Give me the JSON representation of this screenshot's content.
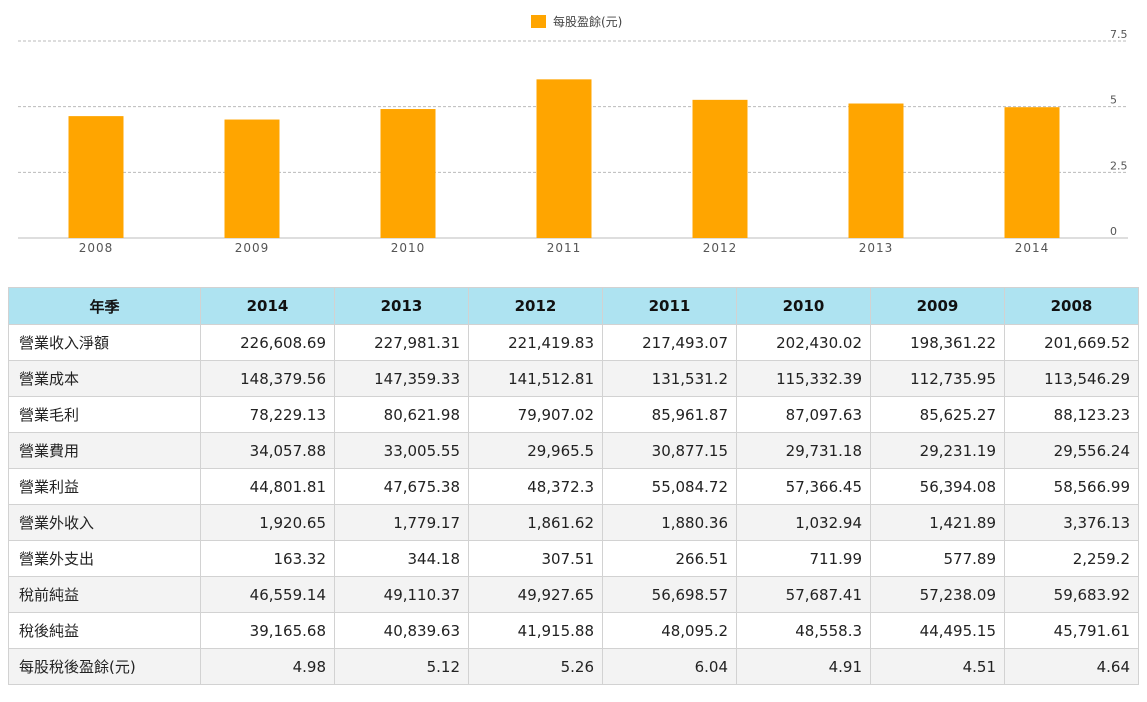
{
  "chart_data": {
    "type": "bar",
    "legend": "每股盈餘(元)",
    "legend_position": "top-center",
    "categories": [
      "2008",
      "2009",
      "2010",
      "2011",
      "2012",
      "2013",
      "2014"
    ],
    "series": [
      {
        "name": "每股盈餘(元)",
        "values": [
          4.64,
          4.51,
          4.91,
          6.04,
          5.26,
          5.12,
          4.98
        ],
        "color": "#ffa500"
      }
    ],
    "ylim": [
      0,
      7.5
    ],
    "y_ticks": [
      "0",
      "2.5",
      "5",
      "7.5"
    ],
    "y_axis_side": "right",
    "grid": true
  },
  "table": {
    "headers": [
      "年季",
      "2014",
      "2013",
      "2012",
      "2011",
      "2010",
      "2009",
      "2008"
    ],
    "rows": [
      {
        "label": "營業收入淨額",
        "values": [
          "226,608.69",
          "227,981.31",
          "221,419.83",
          "217,493.07",
          "202,430.02",
          "198,361.22",
          "201,669.52"
        ]
      },
      {
        "label": "營業成本",
        "values": [
          "148,379.56",
          "147,359.33",
          "141,512.81",
          "131,531.2",
          "115,332.39",
          "112,735.95",
          "113,546.29"
        ]
      },
      {
        "label": "營業毛利",
        "values": [
          "78,229.13",
          "80,621.98",
          "79,907.02",
          "85,961.87",
          "87,097.63",
          "85,625.27",
          "88,123.23"
        ]
      },
      {
        "label": "營業費用",
        "values": [
          "34,057.88",
          "33,005.55",
          "29,965.5",
          "30,877.15",
          "29,731.18",
          "29,231.19",
          "29,556.24"
        ]
      },
      {
        "label": "營業利益",
        "values": [
          "44,801.81",
          "47,675.38",
          "48,372.3",
          "55,084.72",
          "57,366.45",
          "56,394.08",
          "58,566.99"
        ]
      },
      {
        "label": "營業外收入",
        "values": [
          "1,920.65",
          "1,779.17",
          "1,861.62",
          "1,880.36",
          "1,032.94",
          "1,421.89",
          "3,376.13"
        ]
      },
      {
        "label": "營業外支出",
        "values": [
          "163.32",
          "344.18",
          "307.51",
          "266.51",
          "711.99",
          "577.89",
          "2,259.2"
        ]
      },
      {
        "label": "稅前純益",
        "values": [
          "46,559.14",
          "49,110.37",
          "49,927.65",
          "56,698.57",
          "57,687.41",
          "57,238.09",
          "59,683.92"
        ]
      },
      {
        "label": "稅後純益",
        "values": [
          "39,165.68",
          "40,839.63",
          "41,915.88",
          "48,095.2",
          "48,558.3",
          "44,495.15",
          "45,791.61"
        ]
      },
      {
        "label": "每股稅後盈餘(元)",
        "values": [
          "4.98",
          "5.12",
          "5.26",
          "6.04",
          "4.91",
          "4.51",
          "4.64"
        ]
      }
    ]
  }
}
